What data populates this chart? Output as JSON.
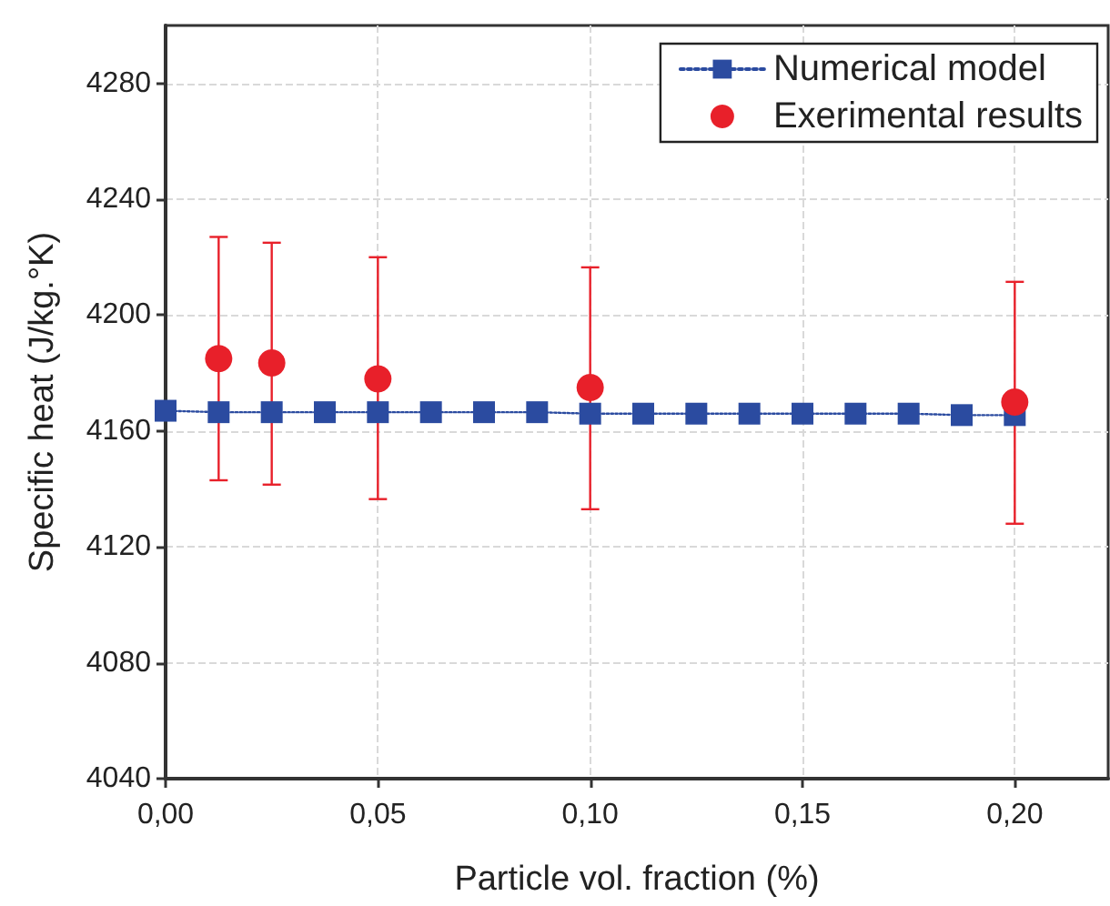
{
  "chart_data": {
    "type": "line",
    "xlabel": "Particle vol. fraction (%)",
    "ylabel": "Specific heat (J/kg.°K)",
    "xlim": [
      0,
      0.222
    ],
    "xticks": [
      {
        "value": 0,
        "label": "0,00"
      },
      {
        "value": 0.05,
        "label": "0,05"
      },
      {
        "value": 0.1,
        "label": "0,10"
      },
      {
        "value": 0.15,
        "label": "0,15"
      },
      {
        "value": 0.2,
        "label": "0,20"
      }
    ],
    "ylim": [
      4040,
      4300
    ],
    "yticks": [
      4040,
      4080,
      4120,
      4160,
      4200,
      4240,
      4280
    ],
    "grid": true,
    "legend": "top right",
    "series": [
      {
        "name": "Numerical model",
        "color": "#2b4ba0",
        "marker": "square",
        "line_style": "dotted",
        "x": [
          0,
          0.0125,
          0.025,
          0.0375,
          0.05,
          0.0625,
          0.075,
          0.0875,
          0.1,
          0.1125,
          0.125,
          0.1375,
          0.15,
          0.1625,
          0.175,
          0.1875,
          0.2
        ],
        "values": [
          4167,
          4166.5,
          4166.5,
          4166.5,
          4166.5,
          4166.5,
          4166.5,
          4166.5,
          4166,
          4166,
          4166,
          4166,
          4166,
          4166,
          4166,
          4165.5,
          4165.5
        ]
      },
      {
        "name": "Exerimental results",
        "type": "scatter",
        "color": "#e8202a",
        "marker": "circle",
        "x": [
          0.0125,
          0.025,
          0.05,
          0.1,
          0.2
        ],
        "values": [
          4185,
          4183.5,
          4178,
          4175,
          4170
        ],
        "errors": [
          [
            4143,
            4227
          ],
          [
            4141.5,
            4225
          ],
          [
            4136.5,
            4220
          ],
          [
            4133,
            4216.5
          ],
          [
            4128,
            4211.5
          ]
        ]
      }
    ]
  }
}
